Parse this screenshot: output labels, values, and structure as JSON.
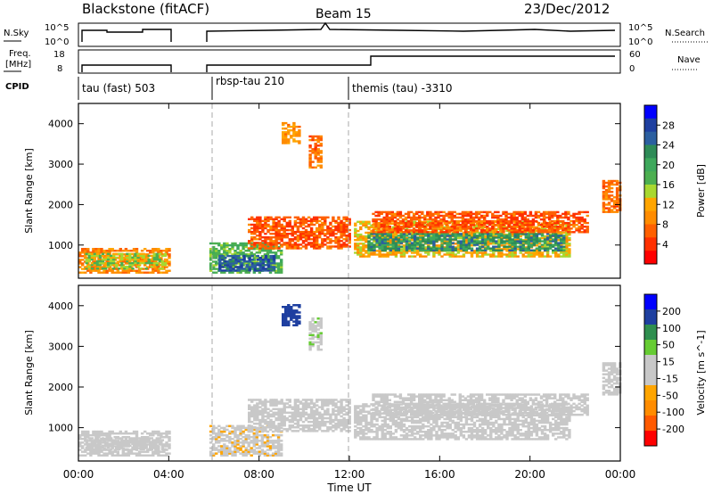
{
  "header": {
    "title": "Blackstone (fitACF)",
    "beam": "Beam 15",
    "date": "23/Dec/2012"
  },
  "params": {
    "nsky_label": "N.Sky",
    "nsky_ticks": [
      "10^5",
      "10^0"
    ],
    "nsearch_label": "N.Search",
    "nsearch_ticks": [
      "10^5",
      "10^0"
    ],
    "freq_label": "Freq.",
    "freq_unit": "[MHz]",
    "freq_ticks": [
      "18",
      "8"
    ],
    "nave_label": "Nave",
    "nave_ticks": [
      "60",
      "0"
    ],
    "cpid_label": "CPID"
  },
  "cpid_segments": [
    {
      "label": "tau (fast) 503",
      "start": 0.0
    },
    {
      "label": "rbsp-tau 210",
      "start": 5.8
    },
    {
      "label": "themis (tau) -3310",
      "start": 12.0
    }
  ],
  "x_axis": {
    "label": "Time UT",
    "ticks": [
      "00:00",
      "04:00",
      "08:00",
      "12:00",
      "16:00",
      "20:00",
      "00:00"
    ],
    "range_hours": [
      0,
      24
    ]
  },
  "colors": {
    "power": [
      "#0000ff",
      "#1e3fa0",
      "#2b5fa0",
      "#2e8b57",
      "#3ea85c",
      "#4caf50",
      "#a8d830",
      "#ffa500",
      "#ff8c00",
      "#ff6000",
      "#ff3000",
      "#ff0000"
    ],
    "velocity": [
      "#0000ff",
      "#1e3fa0",
      "#2f8f4f",
      "#66cc33",
      "#c8c8c8",
      "#c8c8c8",
      "#ffa500",
      "#ff8c00",
      "#ff5a00",
      "#ff0000"
    ]
  },
  "chart_data": [
    {
      "type": "heatmap",
      "title": "Power",
      "ylabel": "Slant Range [km]",
      "colorbar_label": "Power [dB]",
      "colorbar_ticks": [
        "28",
        "24",
        "20",
        "16",
        "12",
        "8",
        "4"
      ],
      "colorbar_range": [
        0,
        32
      ],
      "ylim": [
        180,
        4500
      ],
      "yticks": [
        1000,
        2000,
        3000,
        4000
      ],
      "data_gaps_hours": [
        [
          4.0,
          5.8
        ]
      ],
      "regions": [
        {
          "t0": 0.0,
          "t1": 4.0,
          "r0": 300,
          "r1": 900,
          "value": 9
        },
        {
          "t0": 0.3,
          "t1": 3.8,
          "r0": 400,
          "r1": 800,
          "value": 15
        },
        {
          "t0": 5.8,
          "t1": 9.0,
          "r0": 300,
          "r1": 1050,
          "value": 18
        },
        {
          "t0": 6.2,
          "t1": 8.6,
          "r0": 350,
          "r1": 750,
          "value": 26
        },
        {
          "t0": 7.5,
          "t1": 12.0,
          "r0": 900,
          "r1": 1700,
          "value": 6
        },
        {
          "t0": 9.0,
          "t1": 9.8,
          "r0": 3500,
          "r1": 4000,
          "value": 10
        },
        {
          "t0": 10.2,
          "t1": 10.7,
          "r0": 2900,
          "r1": 3700,
          "value": 8
        },
        {
          "t0": 12.2,
          "t1": 21.7,
          "r0": 700,
          "r1": 1600,
          "value": 12
        },
        {
          "t0": 12.8,
          "t1": 21.5,
          "r0": 850,
          "r1": 1300,
          "value": 22
        },
        {
          "t0": 13.0,
          "t1": 22.5,
          "r0": 1300,
          "r1": 1800,
          "value": 6
        },
        {
          "t0": 23.2,
          "t1": 24.0,
          "r0": 1800,
          "r1": 2600,
          "value": 8
        }
      ]
    },
    {
      "type": "heatmap",
      "title": "Velocity",
      "ylabel": "Slant Range [km]",
      "colorbar_label": "Velocity [m s^-1]",
      "colorbar_ticks": [
        "200",
        "100",
        "50",
        "15",
        "-15",
        "-50",
        "-100",
        "-200"
      ],
      "colorbar_range": [
        -250,
        250
      ],
      "ylim": [
        180,
        4500
      ],
      "yticks": [
        1000,
        2000,
        3000,
        4000
      ],
      "data_gaps_hours": [
        [
          4.0,
          5.8
        ]
      ],
      "regions": [
        {
          "t0": 0.0,
          "t1": 4.0,
          "r0": 300,
          "r1": 900,
          "value": -30
        },
        {
          "t0": 0.3,
          "t1": 3.8,
          "r0": 450,
          "r1": 750,
          "value": 0
        },
        {
          "t0": 5.8,
          "t1": 9.0,
          "r0": 300,
          "r1": 1050,
          "value": -40
        },
        {
          "t0": 7.5,
          "t1": 12.0,
          "r0": 900,
          "r1": 1700,
          "value": 30
        },
        {
          "t0": 9.0,
          "t1": 9.8,
          "r0": 3500,
          "r1": 4000,
          "value": 180
        },
        {
          "t0": 10.2,
          "t1": 10.7,
          "r0": 2900,
          "r1": 3700,
          "value": 40
        },
        {
          "t0": 12.2,
          "t1": 21.7,
          "r0": 700,
          "r1": 1600,
          "value": 0
        },
        {
          "t0": 13.0,
          "t1": 22.5,
          "r0": 1300,
          "r1": 1800,
          "value": 20
        },
        {
          "t0": 23.2,
          "t1": 24.0,
          "r0": 1800,
          "r1": 2600,
          "value": 0
        }
      ]
    }
  ]
}
